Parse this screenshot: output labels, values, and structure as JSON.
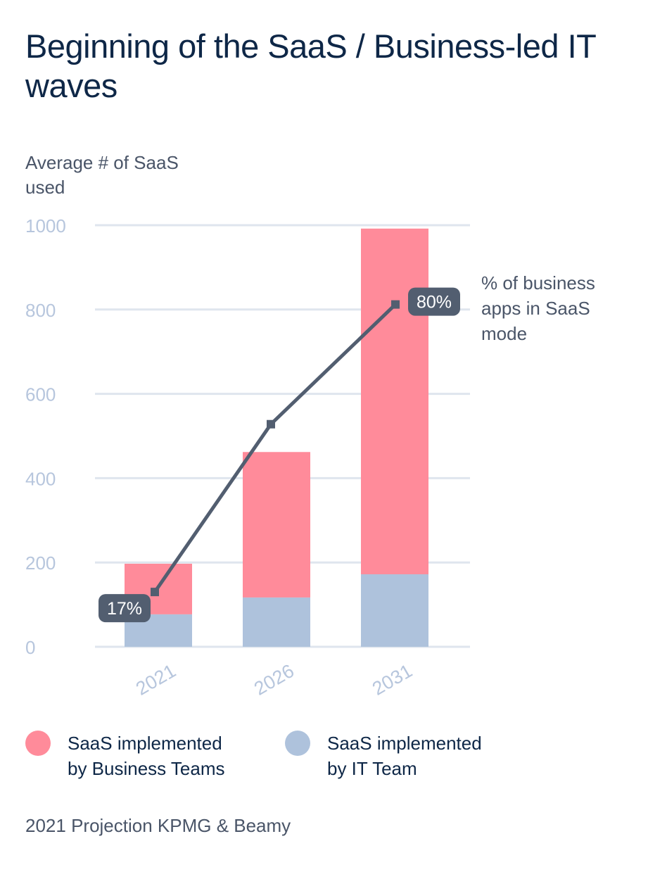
{
  "chart_data": {
    "type": "bar",
    "stacked": true,
    "title": "Beginning of the SaaS / Business-led IT waves",
    "ylabel": "Average # of SaaS used",
    "ylim": [
      0,
      1000
    ],
    "yticks": [
      0,
      200,
      400,
      600,
      800,
      1000
    ],
    "grid": true,
    "categories": [
      "2021",
      "2026",
      "2031"
    ],
    "series": [
      {
        "name": "SaaS implemented by IT Team",
        "values": [
          77,
          117,
          172
        ],
        "color": "#aec2dc"
      },
      {
        "name": "SaaS  implemented by Business Teams",
        "values": [
          120,
          345,
          820
        ],
        "color": "#ff8b9a"
      }
    ],
    "line": {
      "name": "% of business apps in SaaS mode",
      "values": [
        130,
        528,
        812
      ],
      "labels": [
        "17%",
        "",
        "80%"
      ],
      "color": "#525e70"
    },
    "legend_placement": "bottom"
  },
  "legend": [
    {
      "line1": "SaaS  implemented",
      "line2": "by Business Teams",
      "color": "#ff8b9a"
    },
    {
      "line1": "SaaS implemented",
      "line2": "by IT Team",
      "color": "#aec2dc"
    }
  ],
  "line_label": "% of business apps in SaaS mode",
  "source": "2021 Projection KPMG & Beamy"
}
